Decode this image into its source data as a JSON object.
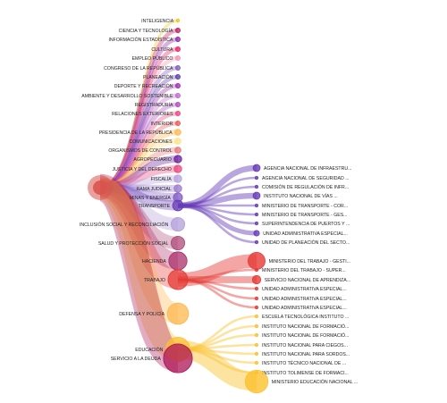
{
  "chart_data": {
    "type": "tree",
    "title": "",
    "root": {
      "color": "#d9534f"
    },
    "sectors": [
      {
        "name": "INTELIGENCIA",
        "color": "#f0c419",
        "size": 2
      },
      {
        "name": "CIENCIA Y TECNOLOGÍA",
        "color": "#c2185b",
        "size": 3
      },
      {
        "name": "INFORMACIÓN ESTADÍSTICA",
        "color": "#8e24aa",
        "size": 3
      },
      {
        "name": "CULTURA",
        "color": "#e91e63",
        "size": 3
      },
      {
        "name": "EMPLEO PÚBLICO",
        "color": "#f48fb1",
        "size": 3
      },
      {
        "name": "CONGRESO DE LA REPÚBLICA",
        "color": "#7e57c2",
        "size": 3
      },
      {
        "name": "PLANEACIÓN",
        "color": "#5e35b1",
        "size": 3
      },
      {
        "name": "DEPORTE Y RECREACIÓN",
        "color": "#9c27b0",
        "size": 3
      },
      {
        "name": "AMBIENTE Y DESARROLLO SOSTENIBLE",
        "color": "#ba68c8",
        "size": 3
      },
      {
        "name": "REGISTRADURÍA",
        "color": "#ab47bc",
        "size": 3
      },
      {
        "name": "RELACIONES EXTERIORES",
        "color": "#ec407a",
        "size": 3
      },
      {
        "name": "INTERIOR",
        "color": "#ef5350",
        "size": 3
      },
      {
        "name": "PRESIDENCIA DE LA REPÚBLICA",
        "color": "#ffb74d",
        "size": 4
      },
      {
        "name": "COMUNICACIONES",
        "color": "#ffe082",
        "size": 4
      },
      {
        "name": "ORGANISMOS DE CONTROL",
        "color": "#e57373",
        "size": 4
      },
      {
        "name": "AGROPECUARIO",
        "color": "#6a1b9a",
        "size": 5
      },
      {
        "name": "JUSTICIA Y DEL DERECHO",
        "color": "#ec407a",
        "size": 5
      },
      {
        "name": "FISCALÍA",
        "color": "#b39ddb",
        "size": 5
      },
      {
        "name": "RAMA JUDICIAL",
        "color": "#9575cd",
        "size": 5
      },
      {
        "name": "MINAS Y ENERGÍA",
        "color": "#7e57c2",
        "size": 6
      },
      {
        "name": "TRANSPORTE",
        "color": "#673ab7",
        "size": 7
      },
      {
        "name": "INCLUSIÓN SOCIAL Y RECONCILIACIÓN",
        "color": "#b39ddb",
        "size": 9
      },
      {
        "name": "SALUD Y PROTECCIÓN SOCIAL",
        "color": "#ad4a79",
        "size": 9
      },
      {
        "name": "HACIENDA",
        "color": "#ab2f6b",
        "size": 12
      },
      {
        "name": "TRABAJO",
        "color": "#e53935",
        "size": 13
      },
      {
        "name": "DEFENSA Y POLICÍA",
        "color": "#ffb74d",
        "size": 14
      },
      {
        "name": "EDUCACIÓN",
        "color": "#fbc02d",
        "size": 16
      },
      {
        "name": "SERVICIO A LA DEUDA",
        "color": "#ad1457",
        "size": 19
      }
    ],
    "expanded": [
      {
        "parent": "TRANSPORTE",
        "color": "#673ab7",
        "entities": [
          {
            "name": "AGENCIA NACIONAL DE INFRAESTRU...",
            "size": 5
          },
          {
            "name": "AGENCIA NACIONAL DE SEGURIDAD ...",
            "size": 2
          },
          {
            "name": "COMISIÓN DE REGULACIÓN DE INFR...",
            "size": 2
          },
          {
            "name": "INSTITUTO NACIONAL DE VÍAS ...",
            "size": 5
          },
          {
            "name": "MINISTERIO DE TRANSPORTE - COR...",
            "size": 2
          },
          {
            "name": "MINISTERIO DE TRANSPORTE - GES...",
            "size": 2
          },
          {
            "name": "SUPERINTENDENCIA DE PUERTOS Y ...",
            "size": 2
          },
          {
            "name": "UNIDAD ADMINISTRATIVA ESPECIAL...",
            "size": 4
          },
          {
            "name": "UNIDAD DE PLANEACIÓN DEL SECTO...",
            "size": 2
          }
        ]
      },
      {
        "parent": "TRABAJO",
        "color": "#e53935",
        "entities": [
          {
            "name": "MINISTERIO DEL TRABAJO - GESTI...",
            "size": 12
          },
          {
            "name": "MINISTERIO DEL TRABAJO - SUPER...",
            "size": 2
          },
          {
            "name": "SERVICIO NACIONAL DE APRENDIZA...",
            "size": 6
          },
          {
            "name": "UNIDAD ADMINISTRATIVA ESPECIAL...",
            "size": 2
          },
          {
            "name": "UNIDAD ADMINISTRATIVA ESPECIAL...",
            "size": 2
          },
          {
            "name": "UNIDAD ADMINISTRATIVA ESPECIAL...",
            "size": 2
          }
        ]
      },
      {
        "parent": "EDUCACIÓN",
        "color": "#fbc02d",
        "entities": [
          {
            "name": "ESCUELA TECNOLÓGICA INSTITUTO ...",
            "size": 2
          },
          {
            "name": "INSTITUTO NACIONAL DE FORMACIÓ...",
            "size": 2
          },
          {
            "name": "INSTITUTO NACIONAL DE FORMACIÓ...",
            "size": 2
          },
          {
            "name": "INSTITUTO NACIONAL PARA CIEGOS...",
            "size": 2
          },
          {
            "name": "INSTITUTO NACIONAL PARA SORDOS...",
            "size": 2
          },
          {
            "name": "INSTITUTO TÉCNICO NACIONAL DE ...",
            "size": 2
          },
          {
            "name": "INSTITUTO TOLIMENSE DE FORMACI...",
            "size": 2
          },
          {
            "name": "MINISTERIO EDUCACIÓN NACIONAL ...",
            "size": 16
          }
        ]
      }
    ]
  }
}
